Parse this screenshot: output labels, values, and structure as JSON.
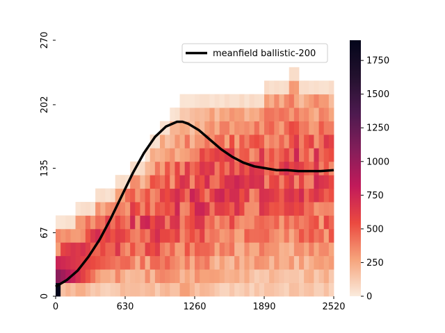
{
  "chart_data": {
    "type": "heatmap",
    "x_ticks": [
      "0",
      "630",
      "1260",
      "1890",
      "2520"
    ],
    "y_ticks": [
      "0",
      "67",
      "135",
      "202",
      "270"
    ],
    "xlim": [
      0,
      2520
    ],
    "ylim": [
      0,
      270
    ],
    "colorbar": {
      "ticks": [
        "0",
        "250",
        "500",
        "750",
        "1000",
        "1250",
        "1500",
        "1750"
      ],
      "min": 0,
      "max": 1900,
      "colormap": [
        "#faebdd",
        "#f6a47c",
        "#eb4a40",
        "#c21a5a",
        "#841e5a",
        "#4d1a4f",
        "#23112e",
        "#03051a"
      ]
    },
    "legend": {
      "label": "meanfield ballistic-200",
      "position": "top-right",
      "color": "#000000"
    },
    "line": {
      "name": "meanfield ballistic-200",
      "x": [
        0,
        100,
        200,
        300,
        400,
        500,
        600,
        700,
        800,
        900,
        1000,
        1100,
        1150,
        1200,
        1300,
        1400,
        1500,
        1600,
        1700,
        1800,
        1900,
        2000,
        2100,
        2200,
        2300,
        2400,
        2520
      ],
      "y": [
        10,
        17,
        27,
        42,
        60,
        82,
        106,
        130,
        151,
        168,
        179,
        184,
        184,
        182,
        175,
        165,
        155,
        147,
        141,
        137,
        135,
        133,
        133,
        132,
        132,
        132,
        133
      ]
    },
    "row_bins": 19,
    "col_bins": 56,
    "column_top_bin": [
      5,
      5,
      5,
      5,
      6,
      6,
      6,
      6,
      7,
      7,
      7,
      7,
      8,
      8,
      8,
      9,
      9,
      9,
      10,
      11,
      11,
      12,
      12,
      13,
      13,
      14,
      14,
      14,
      14,
      14,
      14,
      14,
      14,
      14,
      14,
      14,
      14,
      14,
      14,
      14,
      14,
      14,
      15,
      15,
      15,
      15,
      15,
      16,
      16,
      15,
      15,
      15,
      15,
      15,
      15,
      15
    ]
  }
}
